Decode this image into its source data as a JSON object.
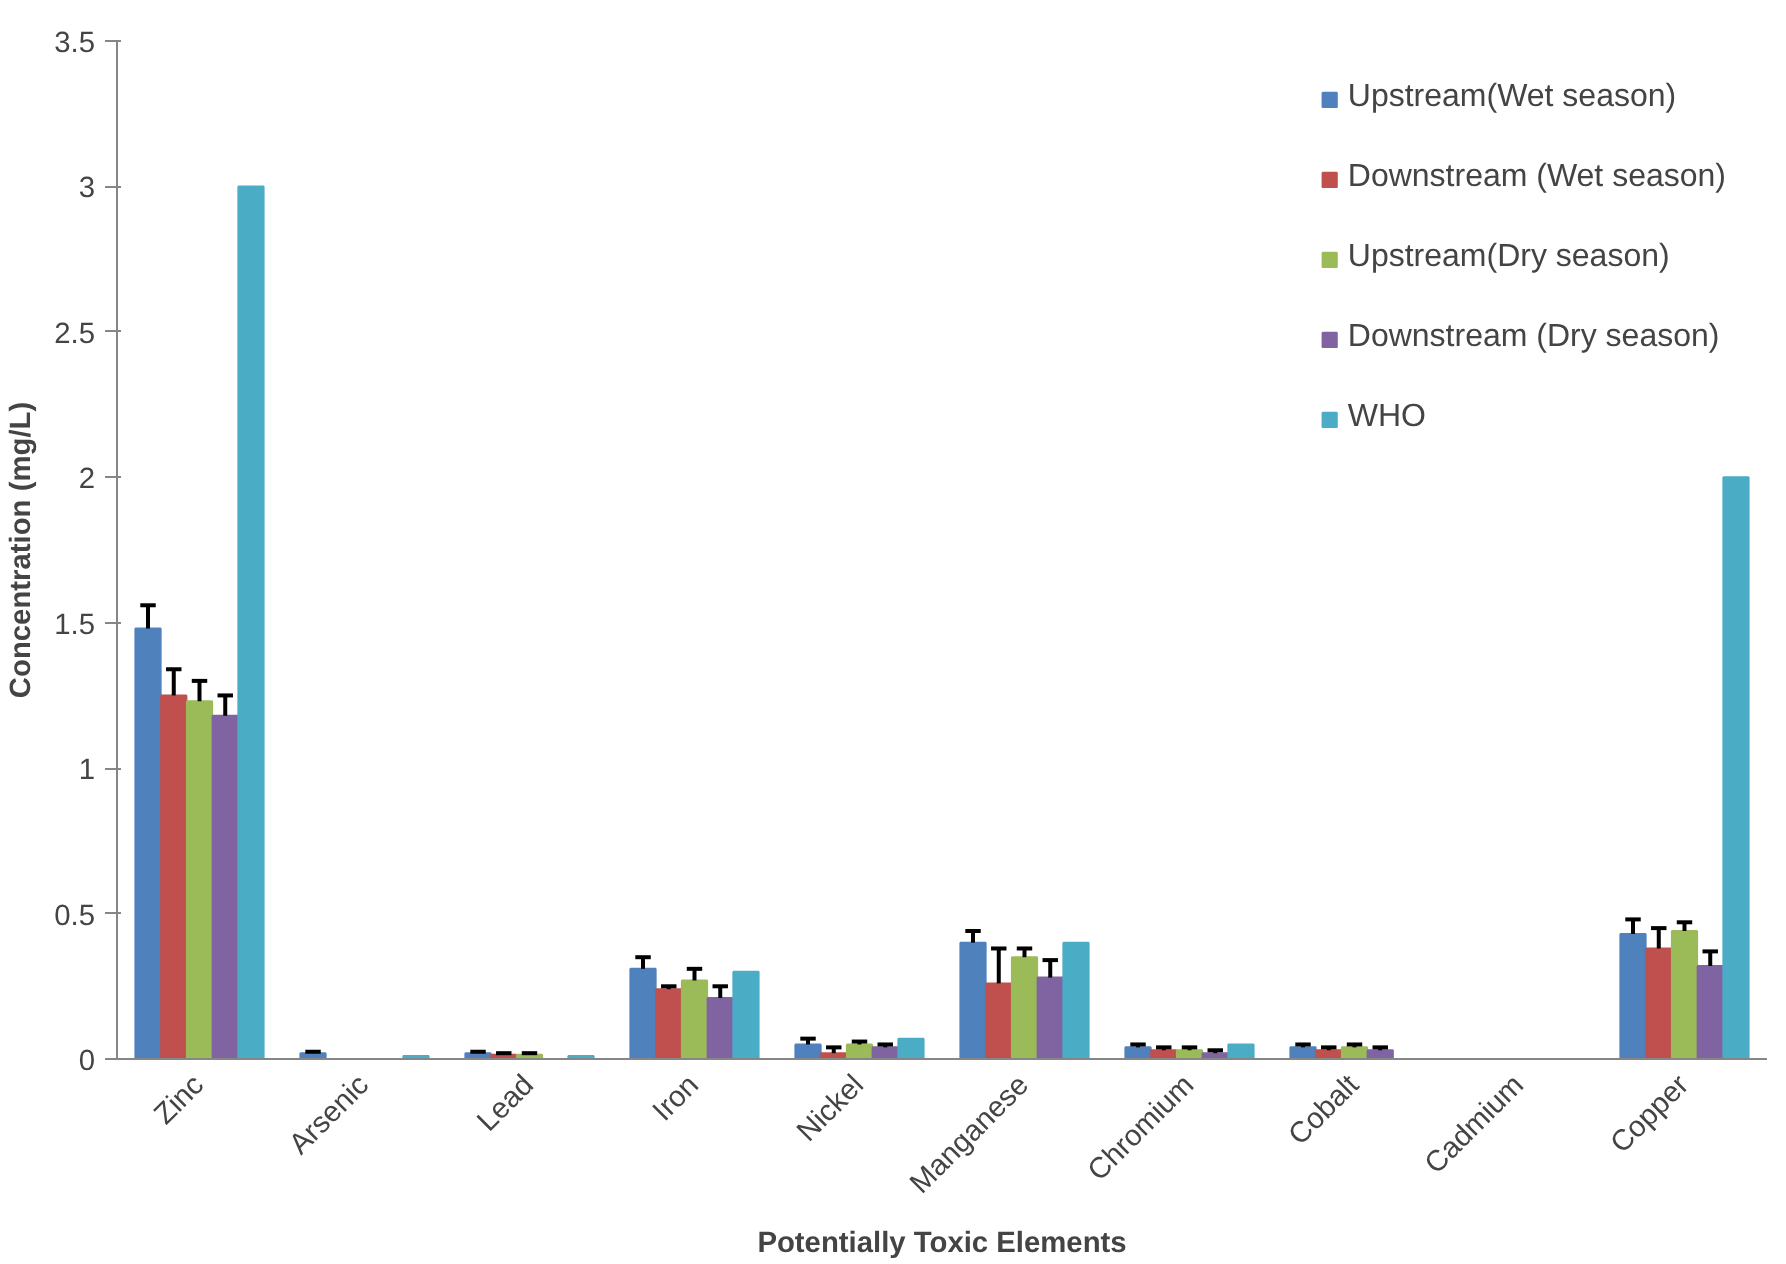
{
  "chart_data": {
    "type": "bar",
    "xlabel": "Potentially Toxic Elements",
    "ylabel": "Concentration (mg/L)",
    "categories": [
      "Zinc",
      "Arsenic",
      "Lead",
      "Iron",
      "Nickel",
      "Manganese",
      "Chromium",
      "Cobalt",
      "Cadmium",
      "Copper"
    ],
    "ylim": [
      0,
      3.5
    ],
    "yticks": [
      0,
      0.5,
      1,
      1.5,
      2,
      2.5,
      3,
      3.5
    ],
    "grid": false,
    "legend": "top right",
    "series": [
      {
        "name": "Upstream(Wet season)",
        "color": "#4f81bd",
        "values": [
          1.48,
          0.02,
          0.02,
          0.31,
          0.05,
          0.4,
          0.04,
          0.04,
          null,
          0.43
        ],
        "errors": [
          [
            1.48,
            1.56
          ],
          [
            0.02,
            0.025
          ],
          [
            0.02,
            0.025
          ],
          [
            0.31,
            0.35
          ],
          [
            0.05,
            0.07
          ],
          [
            0.4,
            0.44
          ],
          [
            0.04,
            0.05
          ],
          [
            0.04,
            0.05
          ],
          null,
          [
            0.43,
            0.48
          ]
        ]
      },
      {
        "name": "Downstream (Wet season)",
        "color": "#c0504d",
        "values": [
          1.25,
          null,
          0.015,
          0.24,
          0.02,
          0.26,
          0.03,
          0.03,
          null,
          0.38
        ],
        "errors": [
          [
            1.25,
            1.34
          ],
          null,
          [
            0.015,
            0.02
          ],
          [
            0.24,
            0.25
          ],
          [
            0.02,
            0.04
          ],
          [
            0.26,
            0.38
          ],
          [
            0.03,
            0.04
          ],
          [
            0.03,
            0.04
          ],
          null,
          [
            0.38,
            0.45
          ]
        ]
      },
      {
        "name": "Upstream(Dry season)",
        "color": "#9bbb59",
        "values": [
          1.23,
          null,
          0.015,
          0.27,
          0.05,
          0.35,
          0.03,
          0.04,
          null,
          0.44
        ],
        "errors": [
          [
            1.23,
            1.3
          ],
          null,
          [
            0.015,
            0.02
          ],
          [
            0.27,
            0.31
          ],
          [
            0.05,
            0.06
          ],
          [
            0.35,
            0.38
          ],
          [
            0.03,
            0.04
          ],
          [
            0.04,
            0.05
          ],
          null,
          [
            0.44,
            0.47
          ]
        ]
      },
      {
        "name": "Downstream (Dry season)",
        "color": "#8064a2",
        "values": [
          1.18,
          null,
          null,
          0.21,
          0.04,
          0.28,
          0.02,
          0.03,
          null,
          0.32
        ],
        "errors": [
          [
            1.18,
            1.25
          ],
          null,
          null,
          [
            0.21,
            0.25
          ],
          [
            0.04,
            0.05
          ],
          [
            0.28,
            0.34
          ],
          [
            0.02,
            0.03
          ],
          [
            0.03,
            0.04
          ],
          null,
          [
            0.32,
            0.37
          ]
        ]
      },
      {
        "name": "WHO",
        "color": "#4bacc6",
        "values": [
          3,
          0.01,
          0.01,
          0.3,
          0.07,
          0.4,
          0.05,
          null,
          null,
          2
        ]
      }
    ]
  }
}
